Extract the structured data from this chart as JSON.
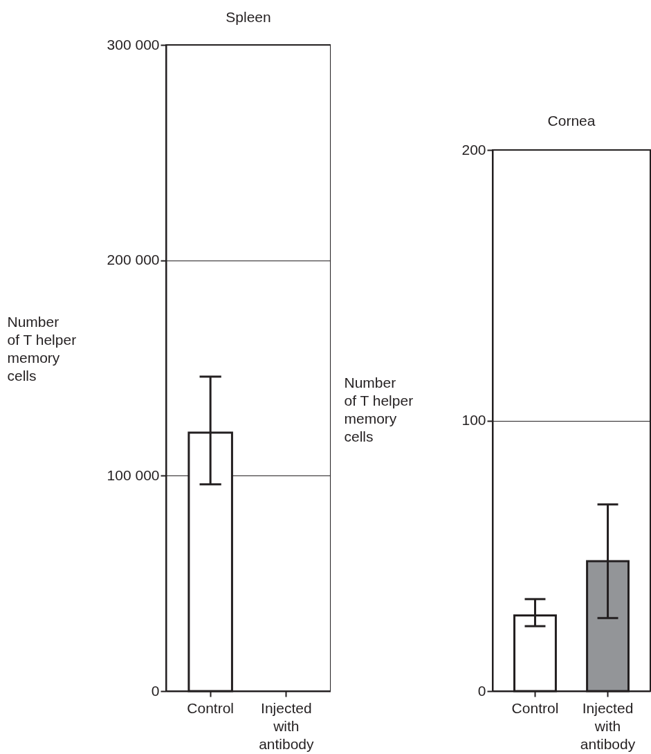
{
  "chart_data": [
    {
      "type": "bar",
      "title": "Spleen",
      "ylabel": "Number\nof T helper\nmemory\ncells",
      "categories": [
        "Control",
        "Injected\nwith\nantibody"
      ],
      "values": [
        120000,
        0
      ],
      "colors": [
        "#ffffff",
        "#ffffff"
      ],
      "errors": [
        [
          96000,
          146000
        ],
        null
      ],
      "ylim": [
        0,
        300000
      ],
      "yticks": [
        {
          "value": 0,
          "label": "0"
        },
        {
          "value": 100000,
          "label": "100 000"
        },
        {
          "value": 200000,
          "label": "200 000"
        },
        {
          "value": 300000,
          "label": "300 000"
        }
      ],
      "grid": "y"
    },
    {
      "type": "bar",
      "title": "Cornea",
      "ylabel": "Number\nof T helper\nmemory\ncells",
      "categories": [
        "Control",
        "Injected\nwith\nantibody"
      ],
      "values": [
        28,
        48
      ],
      "colors": [
        "#ffffff",
        "#939598"
      ],
      "errors": [
        [
          24,
          34
        ],
        [
          27,
          69
        ]
      ],
      "ylim": [
        0,
        200
      ],
      "yticks": [
        0,
        100,
        200
      ],
      "grid": "y"
    }
  ]
}
